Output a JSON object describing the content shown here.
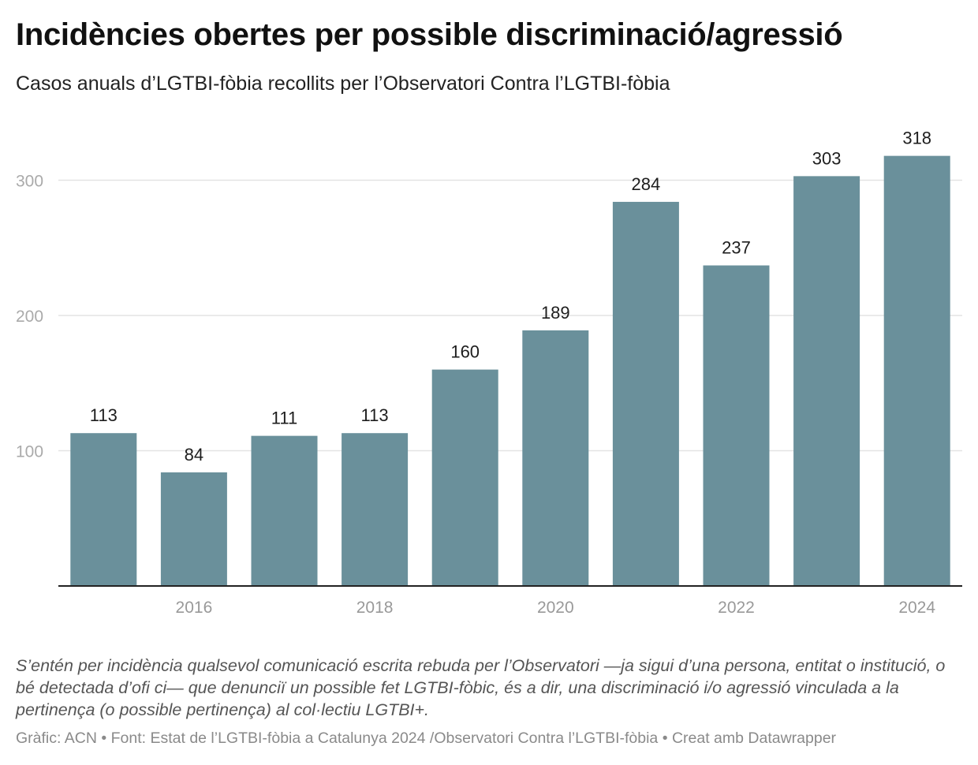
{
  "title": "Incidències obertes per possible discriminació/agressió",
  "subtitle": "Casos anuals d’LGTBI-fòbia recollits per l’Observatori Contra l’LGTBI-fòbia",
  "note": "S’entén per incidència qualsevol comunicació escrita rebuda per l’Observatori —ja sigui d’una persona, entitat o institució, o bé detectada d’ofi ci— que denunciï un possible fet LGTBI-fòbic, és a dir, una discriminació i/o agressió vinculada a la pertinença (o possible pertinença) al col·lectiu LGTBI+.",
  "footer": {
    "graphic": "Gràfic: ACN",
    "source": "• Font: Estat de l’LGTBI-fòbia a Catalunya 2024 /Observatori Contra l’LGTBI-fòbia",
    "tool": "• Creat amb Datawrapper"
  },
  "colors": {
    "bar": "#6a909b",
    "grid": "#e3e3e3",
    "axis": "#222222",
    "tick_text": "#999999",
    "y_tick_text": "#aaaaaa"
  },
  "chart_data": {
    "type": "bar",
    "categories": [
      "2015",
      "2016",
      "2017",
      "2018",
      "2019",
      "2020",
      "2021",
      "2022",
      "2023",
      "2024"
    ],
    "x_tick_labels": [
      "",
      "2016",
      "",
      "2018",
      "",
      "2020",
      "",
      "2022",
      "",
      "2024"
    ],
    "values": [
      113,
      84,
      111,
      113,
      160,
      189,
      284,
      237,
      303,
      318
    ],
    "data_labels": [
      "113",
      "84",
      "111",
      "113",
      "160",
      "189",
      "284",
      "237",
      "303",
      "318"
    ],
    "y_ticks": [
      100,
      200,
      300
    ],
    "y_tick_labels": [
      "100",
      "200",
      "300"
    ],
    "ylim": [
      0,
      350
    ],
    "grid": true,
    "legend": "none",
    "xlabel": "",
    "ylabel": ""
  }
}
